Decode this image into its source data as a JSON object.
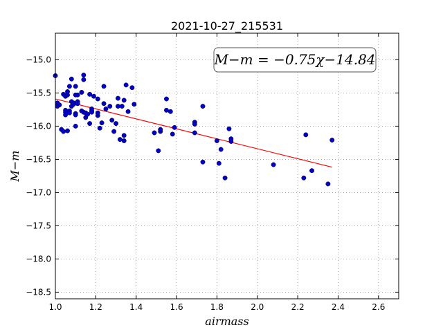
{
  "chart_data": {
    "type": "scatter",
    "title": "2021-10-27_215531",
    "xlabel": "airmass",
    "ylabel": "M−m",
    "xlim": [
      1.0,
      2.7
    ],
    "ylim": [
      -18.6,
      -14.6
    ],
    "y_inverted": true,
    "grid": true,
    "x_ticks": [
      1.0,
      1.2,
      1.4,
      1.6,
      1.8,
      2.0,
      2.2,
      2.4,
      2.6
    ],
    "x_tick_labels": [
      "1.0",
      "1.2",
      "1.4",
      "1.6",
      "1.8",
      "2.0",
      "2.2",
      "2.4",
      "2.6"
    ],
    "y_ticks": [
      -15.0,
      -15.5,
      -16.0,
      -16.5,
      -17.0,
      -17.5,
      -18.0,
      -18.5
    ],
    "y_tick_labels": [
      "−15.0",
      "−15.5",
      "−16.0",
      "−16.5",
      "−17.0",
      "−17.5",
      "−18.0",
      "−18.5"
    ],
    "annotation": "M−m = −0.75χ−14.84",
    "fit_line": {
      "slope": -0.75,
      "intercept": -14.84,
      "x_range": [
        1.0,
        2.37
      ],
      "color": "#ff0000"
    },
    "marker_color": "#0000cc",
    "points": [
      [
        1.0,
        -15.24
      ],
      [
        1.01,
        -15.65
      ],
      [
        1.01,
        -15.7
      ],
      [
        1.02,
        -15.68
      ],
      [
        1.03,
        -16.05
      ],
      [
        1.04,
        -15.52
      ],
      [
        1.04,
        -16.08
      ],
      [
        1.05,
        -15.76
      ],
      [
        1.05,
        -15.79
      ],
      [
        1.05,
        -15.55
      ],
      [
        1.05,
        -15.83
      ],
      [
        1.06,
        -16.07
      ],
      [
        1.06,
        -15.53
      ],
      [
        1.06,
        -15.48
      ],
      [
        1.07,
        -15.4
      ],
      [
        1.07,
        -15.77
      ],
      [
        1.07,
        -15.8
      ],
      [
        1.08,
        -15.29
      ],
      [
        1.08,
        -15.63
      ],
      [
        1.08,
        -15.7
      ],
      [
        1.09,
        -15.65
      ],
      [
        1.09,
        -15.67
      ],
      [
        1.1,
        -15.4
      ],
      [
        1.1,
        -15.53
      ],
      [
        1.1,
        -15.81
      ],
      [
        1.1,
        -15.83
      ],
      [
        1.1,
        -16.0
      ],
      [
        1.11,
        -15.53
      ],
      [
        1.11,
        -15.63
      ],
      [
        1.11,
        -15.66
      ],
      [
        1.13,
        -15.49
      ],
      [
        1.13,
        -15.77
      ],
      [
        1.14,
        -15.23
      ],
      [
        1.14,
        -15.3
      ],
      [
        1.14,
        -15.79
      ],
      [
        1.15,
        -15.87
      ],
      [
        1.15,
        -15.8
      ],
      [
        1.16,
        -15.82
      ],
      [
        1.17,
        -15.52
      ],
      [
        1.17,
        -15.96
      ],
      [
        1.18,
        -15.74
      ],
      [
        1.18,
        -15.77
      ],
      [
        1.18,
        -15.79
      ],
      [
        1.19,
        -15.55
      ],
      [
        1.21,
        -15.59
      ],
      [
        1.21,
        -15.84
      ],
      [
        1.21,
        -15.8
      ],
      [
        1.22,
        -16.03
      ],
      [
        1.23,
        -15.95
      ],
      [
        1.24,
        -15.4
      ],
      [
        1.24,
        -15.66
      ],
      [
        1.25,
        -15.74
      ],
      [
        1.27,
        -15.7
      ],
      [
        1.28,
        -15.91
      ],
      [
        1.29,
        -16.08
      ],
      [
        1.3,
        -15.96
      ],
      [
        1.31,
        -15.58
      ],
      [
        1.31,
        -15.7
      ],
      [
        1.32,
        -16.2
      ],
      [
        1.33,
        -15.7
      ],
      [
        1.34,
        -15.61
      ],
      [
        1.34,
        -16.14
      ],
      [
        1.34,
        -16.22
      ],
      [
        1.35,
        -15.38
      ],
      [
        1.36,
        -15.78
      ],
      [
        1.38,
        -15.42
      ],
      [
        1.39,
        -15.67
      ],
      [
        1.49,
        -16.1
      ],
      [
        1.51,
        -16.37
      ],
      [
        1.52,
        -16.08
      ],
      [
        1.52,
        -16.05
      ],
      [
        1.55,
        -15.59
      ],
      [
        1.55,
        -15.76
      ],
      [
        1.57,
        -15.78
      ],
      [
        1.58,
        -16.12
      ],
      [
        1.59,
        -16.02
      ],
      [
        1.69,
        -16.1
      ],
      [
        1.69,
        -15.94
      ],
      [
        1.69,
        -15.97
      ],
      [
        1.73,
        -15.7
      ],
      [
        1.73,
        -16.54
      ],
      [
        1.8,
        -16.22
      ],
      [
        1.81,
        -16.56
      ],
      [
        1.82,
        -16.35
      ],
      [
        1.84,
        -16.78
      ],
      [
        1.86,
        -16.04
      ],
      [
        1.87,
        -16.23
      ],
      [
        1.87,
        -16.19
      ],
      [
        2.08,
        -16.58
      ],
      [
        2.23,
        -16.78
      ],
      [
        2.24,
        -16.13
      ],
      [
        2.27,
        -16.67
      ],
      [
        2.35,
        -16.87
      ],
      [
        2.37,
        -16.21
      ]
    ]
  }
}
